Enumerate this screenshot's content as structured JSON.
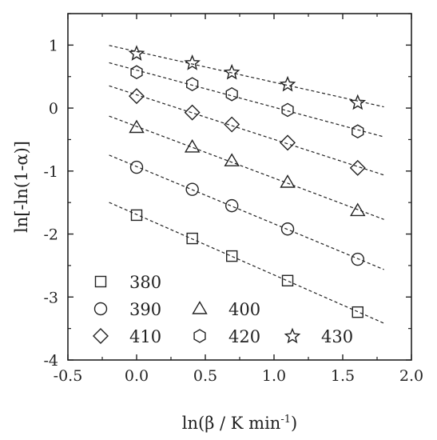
{
  "chart_data": {
    "type": "scatter",
    "xlabel": "ln(β / K min",
    "xlabel_superscript": "-1",
    "xlabel_suffix": ")",
    "ylabel": "ln[-ln(1-α)]",
    "xlim": [
      -0.5,
      2.0
    ],
    "ylim": [
      -4,
      1.5
    ],
    "xticks": [
      -0.5,
      0.0,
      0.5,
      1.0,
      1.5,
      2.0
    ],
    "xtick_labels": [
      "-0.5",
      "0.0",
      "0.5",
      "1.0",
      "1.5",
      "2.0"
    ],
    "yticks": [
      -4,
      -3,
      -2,
      -1,
      0,
      1
    ],
    "ytick_labels": [
      "-4",
      "-3",
      "-2",
      "-1",
      "0",
      "1"
    ],
    "grid": false,
    "legend_position": "bottom-left",
    "x": [
      0.0,
      0.405,
      0.693,
      1.099,
      1.609
    ],
    "series": [
      {
        "name": "380",
        "marker": "square",
        "values": [
          -1.7,
          -2.07,
          -2.35,
          -2.74,
          -3.24
        ]
      },
      {
        "name": "390",
        "marker": "circle",
        "values": [
          -0.94,
          -1.29,
          -1.55,
          -1.92,
          -2.4
        ]
      },
      {
        "name": "400",
        "marker": "triangle",
        "values": [
          -0.31,
          -0.62,
          -0.84,
          -1.18,
          -1.63
        ]
      },
      {
        "name": "410",
        "marker": "diamond",
        "values": [
          0.19,
          -0.07,
          -0.26,
          -0.55,
          -0.95
        ]
      },
      {
        "name": "420",
        "marker": "hexagon",
        "values": [
          0.57,
          0.38,
          0.22,
          -0.03,
          -0.37
        ]
      },
      {
        "name": "430",
        "marker": "star",
        "values": [
          0.87,
          0.72,
          0.57,
          0.38,
          0.09
        ]
      }
    ],
    "fit_line_style": "dashed",
    "fit_x_range": [
      -0.2,
      1.8
    ]
  }
}
